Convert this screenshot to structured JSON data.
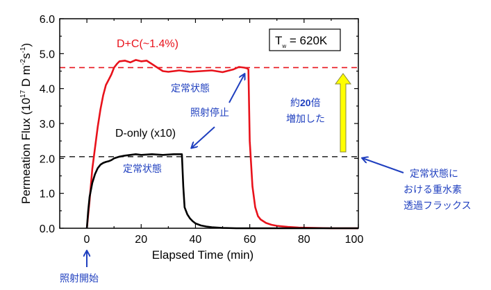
{
  "chart_data": {
    "type": "line",
    "xlabel": "Elapsed Time (min)",
    "ylabel_parts": {
      "main": "Permeation Flux (10",
      "exp1": "17",
      "mid": " D m",
      "exp2": "-2",
      "s": "s",
      "exp3": "-1",
      "end": ")"
    },
    "xlim": [
      -10,
      100
    ],
    "ylim": [
      0,
      6
    ],
    "x_ticks": [
      0,
      20,
      40,
      60,
      80,
      100
    ],
    "x_tick_labels": [
      "0",
      "20",
      "40",
      "60",
      "80",
      "100"
    ],
    "y_ticks": [
      0,
      1,
      2,
      3,
      4,
      5,
      6
    ],
    "y_tick_labels": [
      "0.0",
      "1.0",
      "2.0",
      "3.0",
      "4.0",
      "5.0",
      "6.0"
    ],
    "grid": false,
    "series": [
      {
        "name": "D+C(~1.4%)",
        "color": "#e8121b",
        "x": [
          0,
          1,
          2,
          3,
          4,
          5,
          6,
          7,
          8,
          9,
          10,
          11,
          12,
          14,
          16,
          18,
          20,
          22,
          24,
          26,
          28,
          30,
          34,
          38,
          42,
          46,
          50,
          54,
          56,
          58,
          59,
          59.5,
          60,
          61,
          62,
          63,
          64,
          66,
          68,
          70,
          74,
          78,
          84,
          90,
          100
        ],
        "y": [
          0,
          0.8,
          1.7,
          2.3,
          2.9,
          3.4,
          3.8,
          4.1,
          4.25,
          4.4,
          4.6,
          4.7,
          4.78,
          4.8,
          4.75,
          4.82,
          4.78,
          4.8,
          4.7,
          4.6,
          4.5,
          4.48,
          4.52,
          4.48,
          4.5,
          4.52,
          4.47,
          4.55,
          4.62,
          4.6,
          4.58,
          4.55,
          2.5,
          1.2,
          0.6,
          0.35,
          0.25,
          0.15,
          0.1,
          0.07,
          0.04,
          0.02,
          0.01,
          0.0,
          0.0
        ]
      },
      {
        "name": "D-only (x10)",
        "color": "#000000",
        "x": [
          0,
          0.5,
          1,
          2,
          3,
          4,
          5,
          6,
          7,
          8,
          9,
          10,
          12,
          14,
          16,
          18,
          20,
          24,
          28,
          32,
          35,
          35.5,
          36,
          37,
          38,
          39,
          40,
          42,
          44,
          46,
          48,
          50,
          55,
          60,
          70,
          100
        ],
        "y": [
          0,
          0.5,
          0.9,
          1.3,
          1.55,
          1.72,
          1.82,
          1.87,
          1.9,
          1.92,
          1.95,
          2.0,
          2.05,
          2.08,
          2.1,
          2.12,
          2.1,
          2.12,
          2.1,
          2.12,
          2.12,
          1.2,
          0.6,
          0.4,
          0.28,
          0.2,
          0.14,
          0.08,
          0.05,
          0.03,
          0.02,
          0.01,
          0.0,
          0.0,
          0.0,
          0.0
        ]
      }
    ],
    "reference_lines": [
      {
        "name": "steady-state D+C",
        "y": 4.6,
        "color": "#e8121b",
        "style": "dashed"
      },
      {
        "name": "steady-state D-only",
        "y": 2.05,
        "color": "#333333",
        "style": "dashed"
      }
    ],
    "annotations": {
      "condition_box": {
        "T": "T",
        "sub": "w",
        "rest": " = 620K"
      },
      "steady_state_top": "定常状態",
      "steady_state_bottom": "定常状態",
      "irradiation_stop": "照射停止",
      "irradiation_start": "照射開始",
      "increase_line1_pre": "約",
      "increase_line1_num": "20",
      "increase_line1_post": "倍",
      "increase_line2": "増加した",
      "flux_note_line1": "定常状態に",
      "flux_note_line2": "おける重水素",
      "flux_note_line3": "透過フラックス"
    },
    "colors": {
      "annotation_text": "#1f3fbf",
      "arrow": "#1f3fbf",
      "big_arrow_fill": "#ffff00",
      "big_arrow_stroke": "#8a8a3a"
    }
  }
}
